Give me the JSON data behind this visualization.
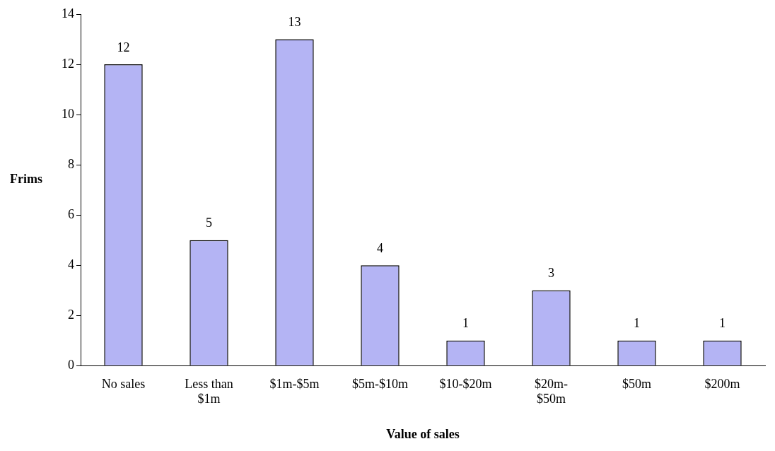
{
  "chart_data": {
    "type": "bar",
    "xlabel": "Value of sales",
    "ylabel": "Frims",
    "categories": [
      "No sales",
      "Less than\n$1m",
      "$1m-$5m",
      "$5m-$10m",
      "$10-$20m",
      "$20m-\n$50m",
      "$50m",
      "$200m"
    ],
    "values": [
      12,
      5,
      13,
      4,
      1,
      3,
      1,
      1
    ],
    "color": "#b4b4f4",
    "ylim": [
      0,
      14
    ],
    "yticks": [
      0,
      2,
      4,
      6,
      8,
      10,
      12,
      14
    ],
    "grid": false,
    "legend": false,
    "data_labels": true
  }
}
